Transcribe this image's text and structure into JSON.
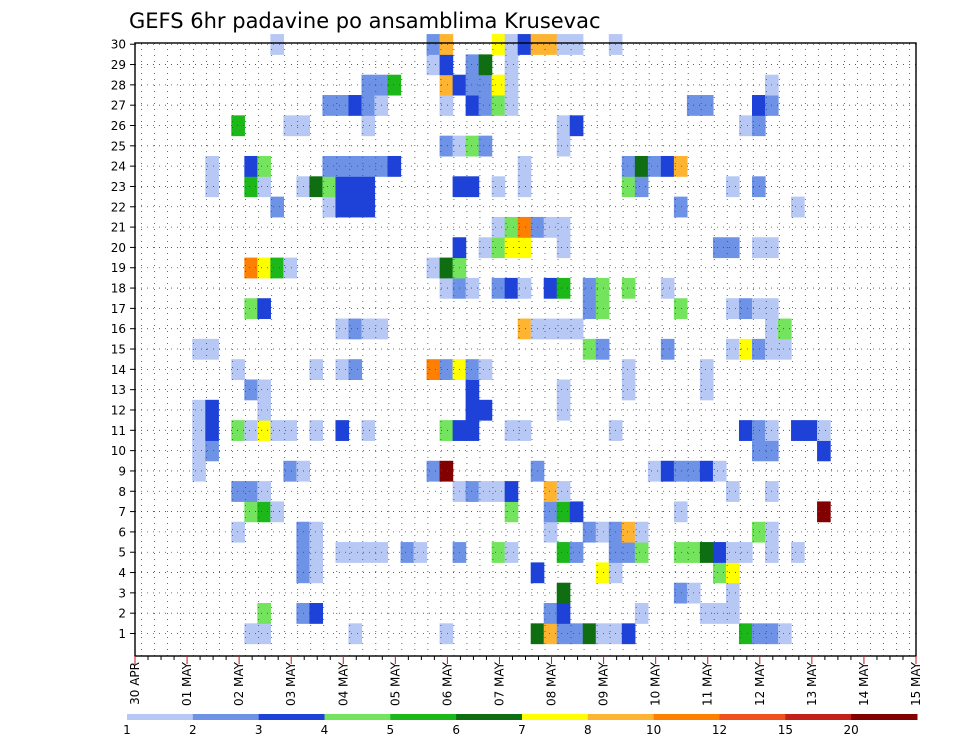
{
  "chart_data": {
    "type": "heatmap",
    "title": "GEFS 6hr padavine po ansamblima Krusevac",
    "xlabel": "",
    "ylabel": "",
    "y_range": [
      1,
      30
    ],
    "y_ticks": [
      1,
      2,
      3,
      4,
      5,
      6,
      7,
      8,
      9,
      10,
      11,
      12,
      13,
      14,
      15,
      16,
      17,
      18,
      19,
      20,
      21,
      22,
      23,
      24,
      25,
      26,
      27,
      28,
      29,
      30
    ],
    "x_tick_labels": [
      "30 APR",
      "01 MAY",
      "02 MAY",
      "03 MAY",
      "04 MAY",
      "05 MAY",
      "06 MAY",
      "07 MAY",
      "08 MAY",
      "09 MAY",
      "10 MAY",
      "11 MAY",
      "12 MAY",
      "13 MAY",
      "14 MAY",
      "15 MAY"
    ],
    "time_step": "6hr",
    "grid": true,
    "colorbar": {
      "position": "bottom",
      "boundaries": [
        1,
        2,
        3,
        4,
        5,
        6,
        7,
        8,
        10,
        12,
        15,
        20
      ],
      "labels": [
        "1",
        "2",
        "3",
        "4",
        "5",
        "6",
        "7",
        "8",
        "10",
        "12",
        "15",
        "20"
      ],
      "colors": [
        "#b7c8f5",
        "#6e92e6",
        "#1e42d8",
        "#74e35e",
        "#1cb81a",
        "#0f6e12",
        "#ffff00",
        "#ffb431",
        "#ff7f00",
        "#f0501e",
        "#c32019",
        "#820000"
      ]
    },
    "cells": [
      [
        1,
        3,
        0
      ],
      [
        1,
        4,
        0
      ],
      [
        1,
        11,
        0
      ],
      [
        1,
        18,
        0
      ],
      [
        1,
        25,
        5
      ],
      [
        1,
        26,
        7
      ],
      [
        1,
        27,
        1
      ],
      [
        1,
        28,
        1
      ],
      [
        1,
        29,
        5
      ],
      [
        1,
        30,
        0
      ],
      [
        1,
        31,
        0
      ],
      [
        1,
        32,
        2
      ],
      [
        1,
        41,
        4
      ],
      [
        1,
        42,
        1
      ],
      [
        1,
        43,
        1
      ],
      [
        1,
        44,
        0
      ],
      [
        2,
        4,
        3
      ],
      [
        2,
        7,
        1
      ],
      [
        2,
        8,
        2
      ],
      [
        2,
        26,
        1
      ],
      [
        2,
        27,
        2
      ],
      [
        2,
        33,
        0
      ],
      [
        2,
        38,
        0
      ],
      [
        2,
        39,
        0
      ],
      [
        2,
        40,
        0
      ],
      [
        3,
        27,
        5
      ],
      [
        3,
        36,
        1
      ],
      [
        3,
        37,
        0
      ],
      [
        3,
        40,
        0
      ],
      [
        4,
        7,
        1
      ],
      [
        4,
        8,
        0
      ],
      [
        4,
        25,
        2
      ],
      [
        4,
        30,
        6
      ],
      [
        4,
        31,
        0
      ],
      [
        4,
        39,
        3
      ],
      [
        4,
        40,
        6
      ],
      [
        5,
        7,
        1
      ],
      [
        5,
        8,
        0
      ],
      [
        5,
        10,
        0
      ],
      [
        5,
        11,
        0
      ],
      [
        5,
        12,
        0
      ],
      [
        5,
        13,
        0
      ],
      [
        5,
        15,
        1
      ],
      [
        5,
        16,
        0
      ],
      [
        5,
        19,
        1
      ],
      [
        5,
        22,
        3
      ],
      [
        5,
        23,
        0
      ],
      [
        5,
        27,
        4
      ],
      [
        5,
        28,
        1
      ],
      [
        5,
        31,
        1
      ],
      [
        5,
        32,
        1
      ],
      [
        5,
        33,
        3
      ],
      [
        5,
        36,
        3
      ],
      [
        5,
        37,
        3
      ],
      [
        5,
        38,
        5
      ],
      [
        5,
        39,
        2
      ],
      [
        5,
        40,
        0
      ],
      [
        5,
        41,
        0
      ],
      [
        5,
        43,
        0
      ],
      [
        5,
        45,
        0
      ],
      [
        6,
        2,
        0
      ],
      [
        6,
        7,
        1
      ],
      [
        6,
        8,
        0
      ],
      [
        6,
        26,
        0
      ],
      [
        6,
        29,
        1
      ],
      [
        6,
        30,
        0
      ],
      [
        6,
        31,
        1
      ],
      [
        6,
        32,
        7
      ],
      [
        6,
        33,
        0
      ],
      [
        6,
        42,
        3
      ],
      [
        6,
        43,
        0
      ],
      [
        7,
        3,
        3
      ],
      [
        7,
        4,
        4
      ],
      [
        7,
        5,
        0
      ],
      [
        7,
        23,
        3
      ],
      [
        7,
        26,
        1
      ],
      [
        7,
        27,
        4
      ],
      [
        7,
        28,
        2
      ],
      [
        7,
        36,
        0
      ],
      [
        7,
        47,
        11
      ],
      [
        8,
        2,
        1
      ],
      [
        8,
        3,
        1
      ],
      [
        8,
        4,
        0
      ],
      [
        8,
        19,
        0
      ],
      [
        8,
        20,
        1
      ],
      [
        8,
        21,
        0
      ],
      [
        8,
        22,
        0
      ],
      [
        8,
        23,
        2
      ],
      [
        8,
        26,
        7
      ],
      [
        8,
        27,
        0
      ],
      [
        8,
        40,
        0
      ],
      [
        8,
        43,
        0
      ],
      [
        9,
        -1,
        0
      ],
      [
        9,
        6,
        1
      ],
      [
        9,
        7,
        0
      ],
      [
        9,
        17,
        1
      ],
      [
        9,
        18,
        11
      ],
      [
        9,
        25,
        1
      ],
      [
        9,
        34,
        0
      ],
      [
        9,
        35,
        2
      ],
      [
        9,
        36,
        1
      ],
      [
        9,
        37,
        1
      ],
      [
        9,
        38,
        2
      ],
      [
        9,
        39,
        0
      ],
      [
        10,
        -1,
        0
      ],
      [
        10,
        0,
        1
      ],
      [
        10,
        42,
        1
      ],
      [
        10,
        43,
        1
      ],
      [
        10,
        47,
        2
      ],
      [
        11,
        -1,
        0
      ],
      [
        11,
        0,
        2
      ],
      [
        11,
        2,
        3
      ],
      [
        11,
        3,
        0
      ],
      [
        11,
        4,
        6
      ],
      [
        11,
        5,
        0
      ],
      [
        11,
        6,
        0
      ],
      [
        11,
        8,
        0
      ],
      [
        11,
        10,
        2
      ],
      [
        11,
        12,
        0
      ],
      [
        11,
        18,
        3
      ],
      [
        11,
        19,
        2
      ],
      [
        11,
        20,
        2
      ],
      [
        11,
        23,
        0
      ],
      [
        11,
        24,
        0
      ],
      [
        11,
        31,
        0
      ],
      [
        11,
        41,
        2
      ],
      [
        11,
        42,
        1
      ],
      [
        11,
        43,
        0
      ],
      [
        11,
        45,
        2
      ],
      [
        11,
        46,
        2
      ],
      [
        11,
        47,
        0
      ],
      [
        12,
        -1,
        0
      ],
      [
        12,
        0,
        2
      ],
      [
        12,
        4,
        0
      ],
      [
        12,
        20,
        2
      ],
      [
        12,
        21,
        2
      ],
      [
        12,
        27,
        0
      ],
      [
        13,
        3,
        1
      ],
      [
        13,
        4,
        0
      ],
      [
        13,
        20,
        2
      ],
      [
        13,
        27,
        0
      ],
      [
        13,
        32,
        0
      ],
      [
        13,
        38,
        0
      ],
      [
        14,
        2,
        0
      ],
      [
        14,
        8,
        0
      ],
      [
        14,
        10,
        0
      ],
      [
        14,
        11,
        1
      ],
      [
        14,
        17,
        8
      ],
      [
        14,
        18,
        1
      ],
      [
        14,
        19,
        6
      ],
      [
        14,
        20,
        1
      ],
      [
        14,
        21,
        0
      ],
      [
        14,
        32,
        0
      ],
      [
        14,
        38,
        0
      ],
      [
        15,
        -1,
        0
      ],
      [
        15,
        0,
        0
      ],
      [
        15,
        29,
        3
      ],
      [
        15,
        30,
        1
      ],
      [
        15,
        35,
        1
      ],
      [
        15,
        40,
        0
      ],
      [
        15,
        41,
        6
      ],
      [
        15,
        42,
        1
      ],
      [
        15,
        43,
        0
      ],
      [
        15,
        44,
        0
      ],
      [
        16,
        10,
        0
      ],
      [
        16,
        11,
        1
      ],
      [
        16,
        12,
        0
      ],
      [
        16,
        13,
        0
      ],
      [
        16,
        24,
        7
      ],
      [
        16,
        25,
        0
      ],
      [
        16,
        26,
        0
      ],
      [
        16,
        27,
        0
      ],
      [
        16,
        28,
        0
      ],
      [
        16,
        43,
        0
      ],
      [
        16,
        44,
        3
      ],
      [
        17,
        3,
        3
      ],
      [
        17,
        4,
        2
      ],
      [
        17,
        29,
        1
      ],
      [
        17,
        30,
        3
      ],
      [
        17,
        36,
        3
      ],
      [
        17,
        40,
        0
      ],
      [
        17,
        41,
        1
      ],
      [
        17,
        42,
        0
      ],
      [
        17,
        43,
        0
      ],
      [
        18,
        18,
        0
      ],
      [
        18,
        19,
        1
      ],
      [
        18,
        20,
        0
      ],
      [
        18,
        22,
        1
      ],
      [
        18,
        23,
        2
      ],
      [
        18,
        24,
        0
      ],
      [
        18,
        26,
        2
      ],
      [
        18,
        27,
        4
      ],
      [
        18,
        29,
        1
      ],
      [
        18,
        30,
        3
      ],
      [
        18,
        32,
        3
      ],
      [
        18,
        35,
        0
      ],
      [
        19,
        3,
        8
      ],
      [
        19,
        4,
        6
      ],
      [
        19,
        5,
        4
      ],
      [
        19,
        6,
        0
      ],
      [
        19,
        17,
        0
      ],
      [
        19,
        18,
        5
      ],
      [
        19,
        19,
        3
      ],
      [
        20,
        19,
        2
      ],
      [
        20,
        21,
        0
      ],
      [
        20,
        22,
        3
      ],
      [
        20,
        23,
        6
      ],
      [
        20,
        24,
        6
      ],
      [
        20,
        27,
        0
      ],
      [
        20,
        39,
        1
      ],
      [
        20,
        40,
        1
      ],
      [
        20,
        42,
        0
      ],
      [
        20,
        43,
        0
      ],
      [
        21,
        22,
        0
      ],
      [
        21,
        23,
        3
      ],
      [
        21,
        24,
        8
      ],
      [
        21,
        25,
        1
      ],
      [
        21,
        26,
        0
      ],
      [
        21,
        27,
        0
      ],
      [
        22,
        5,
        1
      ],
      [
        22,
        9,
        0
      ],
      [
        22,
        10,
        2
      ],
      [
        22,
        11,
        2
      ],
      [
        22,
        12,
        2
      ],
      [
        22,
        36,
        1
      ],
      [
        22,
        45,
        0
      ],
      [
        23,
        0,
        0
      ],
      [
        23,
        3,
        4
      ],
      [
        23,
        4,
        0
      ],
      [
        23,
        7,
        0
      ],
      [
        23,
        8,
        5
      ],
      [
        23,
        9,
        3
      ],
      [
        23,
        10,
        2
      ],
      [
        23,
        11,
        2
      ],
      [
        23,
        12,
        2
      ],
      [
        23,
        19,
        2
      ],
      [
        23,
        20,
        2
      ],
      [
        23,
        22,
        0
      ],
      [
        23,
        24,
        0
      ],
      [
        23,
        32,
        3
      ],
      [
        23,
        33,
        1
      ],
      [
        23,
        40,
        0
      ],
      [
        23,
        42,
        1
      ],
      [
        24,
        0,
        0
      ],
      [
        24,
        3,
        2
      ],
      [
        24,
        4,
        3
      ],
      [
        24,
        9,
        1
      ],
      [
        24,
        10,
        1
      ],
      [
        24,
        11,
        1
      ],
      [
        24,
        12,
        1
      ],
      [
        24,
        13,
        1
      ],
      [
        24,
        14,
        2
      ],
      [
        24,
        24,
        0
      ],
      [
        24,
        32,
        1
      ],
      [
        24,
        33,
        5
      ],
      [
        24,
        34,
        1
      ],
      [
        24,
        35,
        2
      ],
      [
        24,
        36,
        7
      ],
      [
        25,
        18,
        1
      ],
      [
        25,
        19,
        0
      ],
      [
        25,
        20,
        3
      ],
      [
        25,
        21,
        1
      ],
      [
        25,
        27,
        0
      ],
      [
        26,
        2,
        4
      ],
      [
        26,
        6,
        0
      ],
      [
        26,
        7,
        0
      ],
      [
        26,
        12,
        0
      ],
      [
        26,
        27,
        0
      ],
      [
        26,
        28,
        2
      ],
      [
        26,
        41,
        0
      ],
      [
        26,
        42,
        1
      ],
      [
        27,
        9,
        1
      ],
      [
        27,
        10,
        1
      ],
      [
        27,
        11,
        2
      ],
      [
        27,
        12,
        1
      ],
      [
        27,
        13,
        0
      ],
      [
        27,
        18,
        0
      ],
      [
        27,
        20,
        2
      ],
      [
        27,
        21,
        1
      ],
      [
        27,
        22,
        3
      ],
      [
        27,
        23,
        0
      ],
      [
        27,
        37,
        1
      ],
      [
        27,
        38,
        1
      ],
      [
        27,
        42,
        2
      ],
      [
        27,
        43,
        1
      ],
      [
        28,
        12,
        1
      ],
      [
        28,
        13,
        1
      ],
      [
        28,
        14,
        4
      ],
      [
        28,
        18,
        7
      ],
      [
        28,
        19,
        2
      ],
      [
        28,
        20,
        1
      ],
      [
        28,
        21,
        1
      ],
      [
        28,
        22,
        6
      ],
      [
        28,
        23,
        0
      ],
      [
        28,
        43,
        0
      ],
      [
        29,
        17,
        0
      ],
      [
        29,
        18,
        2
      ],
      [
        29,
        20,
        1
      ],
      [
        29,
        21,
        5
      ],
      [
        29,
        23,
        0
      ],
      [
        30,
        5,
        0
      ],
      [
        30,
        17,
        1
      ],
      [
        30,
        18,
        7
      ],
      [
        30,
        22,
        6
      ],
      [
        30,
        23,
        0
      ],
      [
        30,
        24,
        2
      ],
      [
        30,
        25,
        7
      ],
      [
        30,
        26,
        7
      ],
      [
        30,
        27,
        0
      ],
      [
        30,
        28,
        0
      ],
      [
        30,
        31,
        0
      ]
    ]
  }
}
